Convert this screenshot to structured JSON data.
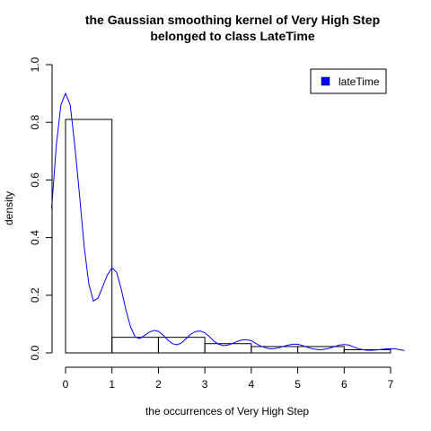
{
  "chart_data": {
    "type": "bar",
    "title_lines": [
      "the Gaussian smoothing kernel of Very High Step",
      "belonged to class LateTime"
    ],
    "xlabel": "the occurrences of Very High Step",
    "ylabel": "density",
    "xlim": [
      -0.3,
      7.3
    ],
    "ylim": [
      0,
      1.0
    ],
    "x_ticks": [
      "0",
      "1",
      "2",
      "3",
      "4",
      "5",
      "6",
      "7"
    ],
    "y_ticks": [
      "0.0",
      "0.2",
      "0.4",
      "0.6",
      "0.8",
      "1.0"
    ],
    "histogram": {
      "bins": [
        [
          0,
          1
        ],
        [
          1,
          2
        ],
        [
          2,
          3
        ],
        [
          3,
          4
        ],
        [
          4,
          5
        ],
        [
          5,
          6
        ],
        [
          6,
          7
        ]
      ],
      "density": [
        0.81,
        0.054,
        0.054,
        0.032,
        0.022,
        0.022,
        0.011
      ]
    },
    "density_curve": {
      "name": "lateTime",
      "color": "#0000ff",
      "x": [
        -0.3,
        -0.2,
        -0.1,
        0,
        0.1,
        0.2,
        0.3,
        0.4,
        0.5,
        0.6,
        0.7,
        0.8,
        0.9,
        1.0,
        1.1,
        1.2,
        1.3,
        1.4,
        1.5,
        1.6,
        1.7,
        1.8,
        1.9,
        2.0,
        2.1,
        2.2,
        2.3,
        2.4,
        2.5,
        2.6,
        2.7,
        2.8,
        2.9,
        3.0,
        3.1,
        3.2,
        3.3,
        3.4,
        3.5,
        3.6,
        3.7,
        3.8,
        3.9,
        4.0,
        4.1,
        4.2,
        4.3,
        4.4,
        4.5,
        4.6,
        4.7,
        4.8,
        4.9,
        5.0,
        5.1,
        5.2,
        5.3,
        5.4,
        5.5,
        5.6,
        5.7,
        5.8,
        5.9,
        6.0,
        6.1,
        6.2,
        6.3,
        6.4,
        6.5,
        6.6,
        6.7,
        6.8,
        6.9,
        7.0,
        7.1,
        7.2,
        7.3
      ],
      "y": [
        0.5,
        0.72,
        0.86,
        0.9,
        0.86,
        0.72,
        0.55,
        0.37,
        0.24,
        0.18,
        0.19,
        0.23,
        0.27,
        0.295,
        0.28,
        0.22,
        0.15,
        0.09,
        0.055,
        0.05,
        0.06,
        0.072,
        0.078,
        0.075,
        0.062,
        0.045,
        0.032,
        0.028,
        0.035,
        0.05,
        0.065,
        0.074,
        0.076,
        0.07,
        0.056,
        0.04,
        0.03,
        0.025,
        0.027,
        0.033,
        0.04,
        0.045,
        0.046,
        0.042,
        0.033,
        0.024,
        0.018,
        0.014,
        0.015,
        0.018,
        0.023,
        0.027,
        0.03,
        0.03,
        0.026,
        0.02,
        0.015,
        0.012,
        0.011,
        0.013,
        0.017,
        0.022,
        0.027,
        0.029,
        0.027,
        0.021,
        0.015,
        0.011,
        0.009,
        0.009,
        0.01,
        0.012,
        0.014,
        0.015,
        0.014,
        0.011,
        0.008
      ]
    },
    "legend": {
      "entries": [
        "lateTime"
      ],
      "placement": "top-right",
      "color": "#0000ff"
    }
  }
}
